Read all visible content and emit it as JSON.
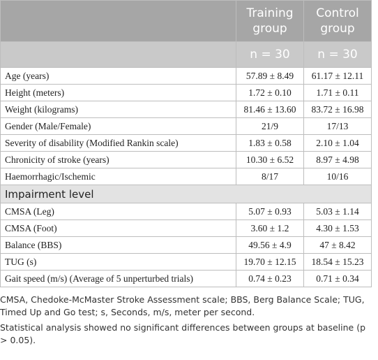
{
  "table": {
    "columns": [
      "Training group",
      "Control group"
    ],
    "sample_sizes": [
      "n = 30",
      "n = 30"
    ],
    "rows": [
      [
        "Age (years)",
        "57.89 ± 8.49",
        "61.17 ± 12.11"
      ],
      [
        "Height (meters)",
        "1.72 ± 0.10",
        "1.71 ± 0.11"
      ],
      [
        "Weight (kilograms)",
        "81.46 ± 13.60",
        "83.72 ± 16.98"
      ],
      [
        "Gender (Male/Female)",
        "21/9",
        "17/13"
      ],
      [
        "Severity of disability (Modified Rankin scale)",
        "1.83 ± 0.58",
        "2.10 ± 1.04"
      ],
      [
        "Chronicity of stroke (years)",
        "10.30 ± 6.52",
        "8.97 ± 4.98"
      ],
      [
        "Haemorrhagic/Ischemic",
        "8/17",
        "10/16"
      ]
    ],
    "section": "Impairment level",
    "section_rows": [
      [
        "CMSA (Leg)",
        "5.07 ± 0.93",
        "5.03 ± 1.14"
      ],
      [
        "CMSA (Foot)",
        "3.60 ± 1.2",
        "4.30 ± 1.53"
      ],
      [
        "Balance (BBS)",
        "49.56 ± 4.9",
        "47 ± 8.42"
      ],
      [
        "TUG (s)",
        "19.70 ± 12.15",
        "18.54 ± 15.23"
      ],
      [
        "Gait speed (m/s) (Average of 5 unperturbed trials)",
        "0.74 ± 0.23",
        "0.71 ± 0.34"
      ]
    ]
  },
  "footnotes": [
    "CMSA, Chedoke-McMaster Stroke Assessment scale; BBS, Berg Balance Scale; TUG, Timed Up and Go test; s, Seconds, m/s, meter per second.",
    "Statistical analysis showed no significant differences between groups at baseline (p > 0.05)."
  ]
}
